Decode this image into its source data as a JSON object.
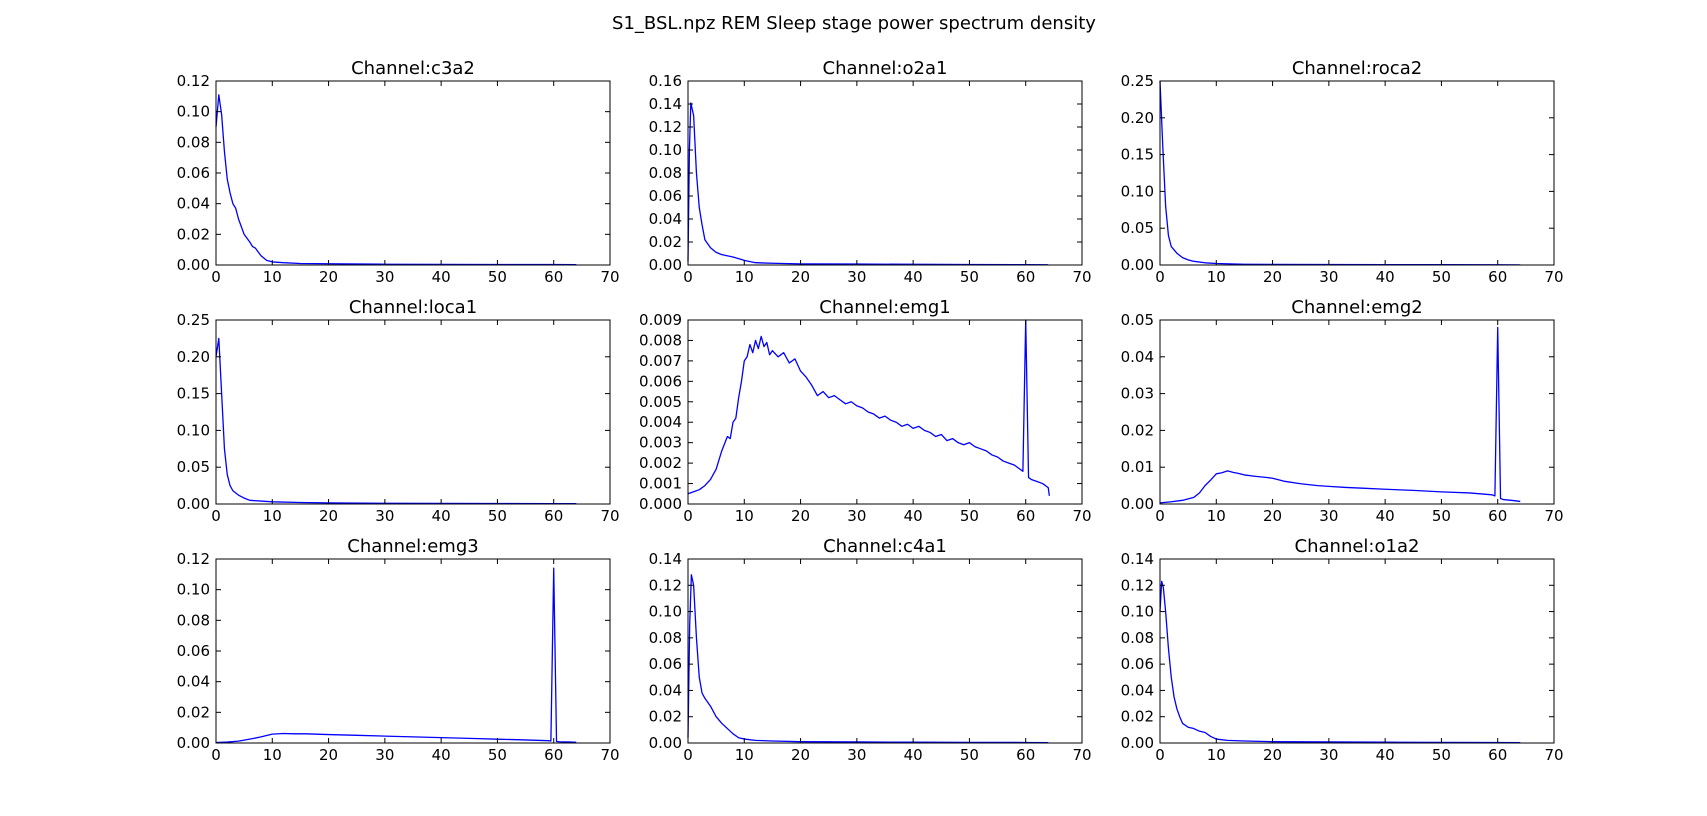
{
  "figure": {
    "title": "S1_BSL.npz REM Sleep stage power spectrum density",
    "line_color": "#0000ff"
  },
  "chart_data": [
    {
      "type": "line",
      "title": "Channel:c3a2",
      "xlim": [
        0,
        70
      ],
      "ylim": [
        0,
        0.12
      ],
      "xticks": [
        "0",
        "10",
        "20",
        "30",
        "40",
        "50",
        "60",
        "70"
      ],
      "yticks": [
        "0.00",
        "0.02",
        "0.04",
        "0.06",
        "0.08",
        "0.10",
        "0.12"
      ],
      "series": [
        {
          "x": [
            0,
            0.5,
            1,
            1.5,
            2,
            2.5,
            3,
            3.5,
            4,
            5,
            6,
            6.5,
            7,
            8,
            9,
            10,
            12,
            15,
            20,
            30,
            40,
            50,
            60,
            64
          ],
          "y": [
            0.09,
            0.111,
            0.098,
            0.074,
            0.056,
            0.047,
            0.04,
            0.037,
            0.03,
            0.02,
            0.015,
            0.012,
            0.011,
            0.006,
            0.003,
            0.002,
            0.0015,
            0.001,
            0.0008,
            0.0005,
            0.0004,
            0.0003,
            0.0003,
            0.0002
          ]
        }
      ]
    },
    {
      "type": "line",
      "title": "Channel:o2a1",
      "xlim": [
        0,
        70
      ],
      "ylim": [
        0,
        0.16
      ],
      "xticks": [
        "0",
        "10",
        "20",
        "30",
        "40",
        "50",
        "60",
        "70"
      ],
      "yticks": [
        "0.00",
        "0.02",
        "0.04",
        "0.06",
        "0.08",
        "0.10",
        "0.12",
        "0.14",
        "0.16"
      ],
      "series": [
        {
          "x": [
            0,
            0.25,
            0.5,
            1,
            1.5,
            2,
            2.5,
            3,
            4,
            5,
            6,
            8,
            10,
            12,
            15,
            20,
            30,
            40,
            50,
            60,
            64
          ],
          "y": [
            0.003,
            0.1,
            0.141,
            0.13,
            0.08,
            0.05,
            0.035,
            0.022,
            0.015,
            0.011,
            0.009,
            0.007,
            0.004,
            0.002,
            0.0015,
            0.001,
            0.0008,
            0.0006,
            0.0004,
            0.0003,
            0.0002
          ]
        }
      ]
    },
    {
      "type": "line",
      "title": "Channel:roca2",
      "xlim": [
        0,
        70
      ],
      "ylim": [
        0,
        0.25
      ],
      "xticks": [
        "0",
        "10",
        "20",
        "30",
        "40",
        "50",
        "60",
        "70"
      ],
      "yticks": [
        "0.00",
        "0.05",
        "0.10",
        "0.15",
        "0.20",
        "0.25"
      ],
      "series": [
        {
          "x": [
            0,
            0.5,
            1,
            1.5,
            2,
            3,
            4,
            5,
            6,
            8,
            10,
            15,
            20,
            30,
            40,
            50,
            60,
            64
          ],
          "y": [
            0.25,
            0.16,
            0.08,
            0.04,
            0.025,
            0.016,
            0.01,
            0.007,
            0.005,
            0.003,
            0.002,
            0.001,
            0.0008,
            0.0006,
            0.0005,
            0.0004,
            0.0003,
            0.0002
          ]
        }
      ]
    },
    {
      "type": "line",
      "title": "Channel:loca1",
      "xlim": [
        0,
        70
      ],
      "ylim": [
        0,
        0.25
      ],
      "xticks": [
        "0",
        "10",
        "20",
        "30",
        "40",
        "50",
        "60",
        "70"
      ],
      "yticks": [
        "0.00",
        "0.05",
        "0.10",
        "0.15",
        "0.20",
        "0.25"
      ],
      "series": [
        {
          "x": [
            0,
            0.5,
            1,
            1.5,
            2,
            2.5,
            3,
            4,
            5,
            6,
            8,
            10,
            15,
            20,
            30,
            40,
            50,
            60,
            64
          ],
          "y": [
            0.2,
            0.225,
            0.15,
            0.075,
            0.04,
            0.025,
            0.018,
            0.012,
            0.008,
            0.005,
            0.004,
            0.003,
            0.002,
            0.0015,
            0.001,
            0.0008,
            0.0006,
            0.0005,
            0.0004
          ]
        }
      ]
    },
    {
      "type": "line",
      "title": "Channel:emg1",
      "xlim": [
        0,
        70
      ],
      "ylim": [
        0,
        0.009
      ],
      "xticks": [
        "0",
        "10",
        "20",
        "30",
        "40",
        "50",
        "60",
        "70"
      ],
      "yticks": [
        "0.000",
        "0.001",
        "0.002",
        "0.003",
        "0.004",
        "0.005",
        "0.006",
        "0.007",
        "0.008",
        "0.009"
      ],
      "series": [
        {
          "x": [
            0,
            1,
            2,
            3,
            4,
            5,
            6,
            7,
            7.5,
            8,
            8.5,
            9,
            9.5,
            10,
            10.5,
            11,
            11.5,
            12,
            12.5,
            13,
            13.5,
            14,
            14.5,
            15,
            16,
            17,
            18,
            19,
            20,
            21,
            22,
            23,
            24,
            25,
            26,
            27,
            28,
            29,
            30,
            31,
            32,
            33,
            34,
            35,
            36,
            37,
            38,
            39,
            40,
            41,
            42,
            43,
            44,
            45,
            46,
            47,
            48,
            49,
            50,
            51,
            52,
            53,
            54,
            55,
            56,
            57,
            58,
            59,
            59.5,
            60,
            60.5,
            61,
            62,
            63,
            64,
            64.2
          ],
          "y": [
            0.0005,
            0.0006,
            0.0007,
            0.0009,
            0.0012,
            0.0017,
            0.0026,
            0.0033,
            0.0032,
            0.004,
            0.0042,
            0.0052,
            0.006,
            0.007,
            0.0072,
            0.0078,
            0.0074,
            0.008,
            0.0076,
            0.0082,
            0.0077,
            0.0079,
            0.0073,
            0.0075,
            0.0072,
            0.0074,
            0.0069,
            0.0071,
            0.0065,
            0.0062,
            0.0058,
            0.0053,
            0.0055,
            0.0052,
            0.0053,
            0.0051,
            0.0049,
            0.005,
            0.0048,
            0.0047,
            0.0045,
            0.0044,
            0.0042,
            0.0043,
            0.0041,
            0.004,
            0.0038,
            0.0039,
            0.0037,
            0.0038,
            0.0036,
            0.0035,
            0.0033,
            0.0034,
            0.0031,
            0.0032,
            0.003,
            0.0029,
            0.003,
            0.0028,
            0.0027,
            0.0026,
            0.0024,
            0.0023,
            0.0021,
            0.002,
            0.0019,
            0.0017,
            0.0016,
            0.009,
            0.0013,
            0.0012,
            0.0011,
            0.001,
            0.0008,
            0.0004
          ]
        }
      ]
    },
    {
      "type": "line",
      "title": "Channel:emg2",
      "xlim": [
        0,
        70
      ],
      "ylim": [
        0,
        0.05
      ],
      "xticks": [
        "0",
        "10",
        "20",
        "30",
        "40",
        "50",
        "60",
        "70"
      ],
      "yticks": [
        "0.00",
        "0.01",
        "0.02",
        "0.03",
        "0.04",
        "0.05"
      ],
      "series": [
        {
          "x": [
            0,
            2,
            4,
            6,
            7,
            8,
            9,
            10,
            11,
            12,
            13,
            14,
            15,
            17,
            19,
            20,
            22,
            25,
            28,
            30,
            33,
            36,
            40,
            45,
            50,
            55,
            59,
            59.5,
            60,
            60.5,
            61,
            63,
            64
          ],
          "y": [
            0.0003,
            0.0006,
            0.001,
            0.0018,
            0.003,
            0.005,
            0.0065,
            0.0082,
            0.0085,
            0.009,
            0.0086,
            0.0083,
            0.0079,
            0.0075,
            0.0072,
            0.007,
            0.0062,
            0.0055,
            0.005,
            0.0048,
            0.0045,
            0.0043,
            0.004,
            0.0037,
            0.0033,
            0.003,
            0.0025,
            0.0022,
            0.048,
            0.0015,
            0.0012,
            0.0009,
            0.0007
          ]
        }
      ]
    },
    {
      "type": "line",
      "title": "Channel:emg3",
      "xlim": [
        0,
        70
      ],
      "ylim": [
        0,
        0.12
      ],
      "xticks": [
        "0",
        "10",
        "20",
        "30",
        "40",
        "50",
        "60",
        "70"
      ],
      "yticks": [
        "0.00",
        "0.02",
        "0.04",
        "0.06",
        "0.08",
        "0.10",
        "0.12"
      ],
      "series": [
        {
          "x": [
            0,
            2,
            4,
            6,
            8,
            10,
            12,
            14,
            16,
            20,
            25,
            30,
            35,
            40,
            45,
            50,
            55,
            59,
            59.5,
            60,
            60.5,
            61,
            63,
            64
          ],
          "y": [
            0.0003,
            0.0006,
            0.0012,
            0.0025,
            0.004,
            0.0058,
            0.0062,
            0.006,
            0.006,
            0.0055,
            0.005,
            0.0045,
            0.004,
            0.0035,
            0.003,
            0.0025,
            0.002,
            0.0015,
            0.0013,
            0.114,
            0.001,
            0.0008,
            0.0006,
            0.0005
          ]
        }
      ]
    },
    {
      "type": "line",
      "title": "Channel:c4a1",
      "xlim": [
        0,
        70
      ],
      "ylim": [
        0,
        0.14
      ],
      "xticks": [
        "0",
        "10",
        "20",
        "30",
        "40",
        "50",
        "60",
        "70"
      ],
      "yticks": [
        "0.00",
        "0.02",
        "0.04",
        "0.06",
        "0.08",
        "0.10",
        "0.12",
        "0.14"
      ],
      "series": [
        {
          "x": [
            0,
            0.3,
            0.6,
            1,
            1.5,
            2,
            2.5,
            3,
            4,
            5,
            6,
            7,
            8,
            9,
            10,
            12,
            15,
            20,
            30,
            40,
            50,
            60,
            64
          ],
          "y": [
            0.004,
            0.09,
            0.128,
            0.12,
            0.08,
            0.05,
            0.038,
            0.034,
            0.028,
            0.02,
            0.015,
            0.011,
            0.007,
            0.004,
            0.003,
            0.002,
            0.0015,
            0.001,
            0.0008,
            0.0006,
            0.0005,
            0.0004,
            0.0003
          ]
        }
      ]
    },
    {
      "type": "line",
      "title": "Channel:o1a2",
      "xlim": [
        0,
        70
      ],
      "ylim": [
        0,
        0.14
      ],
      "xticks": [
        "0",
        "10",
        "20",
        "30",
        "40",
        "50",
        "60",
        "70"
      ],
      "yticks": [
        "0.00",
        "0.02",
        "0.04",
        "0.06",
        "0.08",
        "0.10",
        "0.12",
        "0.14"
      ],
      "series": [
        {
          "x": [
            0,
            0.3,
            0.6,
            1,
            1.5,
            2,
            2.5,
            3,
            3.5,
            4,
            5,
            6,
            7,
            8,
            9,
            10,
            12,
            15,
            20,
            30,
            40,
            50,
            60,
            64
          ],
          "y": [
            0.1,
            0.123,
            0.118,
            0.1,
            0.072,
            0.05,
            0.035,
            0.026,
            0.02,
            0.015,
            0.012,
            0.011,
            0.009,
            0.008,
            0.005,
            0.003,
            0.002,
            0.0015,
            0.001,
            0.0008,
            0.0006,
            0.0005,
            0.0004,
            0.0003
          ]
        }
      ]
    }
  ]
}
